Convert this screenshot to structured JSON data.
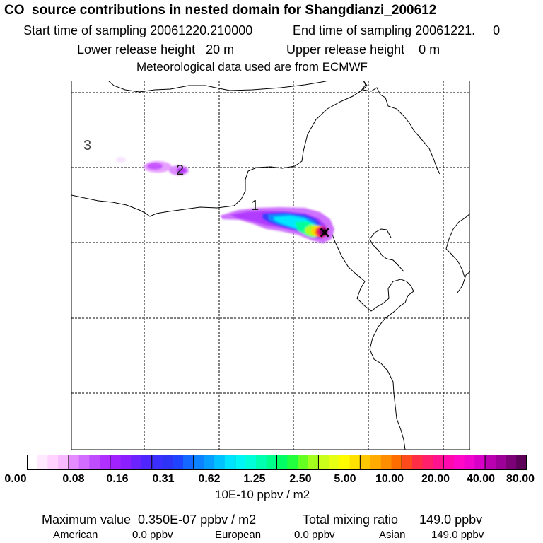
{
  "header": {
    "title": "CO  source contributions in nested domain for Shangdianzi_200612",
    "start_time": "Start time of sampling 20061220.210000",
    "end_time": "End time of sampling 20061221.     0",
    "lower_release": "Lower release height   20 m",
    "upper_release": "Upper release height    0 m",
    "met_data": "Meteorological data used are from ECMWF"
  },
  "map": {
    "trajectory_labels": [
      "3",
      "2",
      "1"
    ],
    "receptor_marker": "×"
  },
  "colorbar": {
    "ticks": [
      "0.00",
      "0.08",
      "0.16",
      "0.31",
      "0.62",
      "1.25",
      "2.50",
      "5.00",
      "10.00",
      "20.00",
      "40.00",
      "80.00"
    ],
    "units": "10E-10 ppbv / m2",
    "colors": [
      "#ffffff",
      "#ffe9ff",
      "#ffd2ff",
      "#f8baff",
      "#e48cff",
      "#d26bff",
      "#c04cff",
      "#b030ff",
      "#a222ff",
      "#8b1fff",
      "#6c24ff",
      "#4f26ff",
      "#3b2fff",
      "#2d34f5",
      "#1f43ff",
      "#1467ff",
      "#0d82ff",
      "#069fff",
      "#00c2ff",
      "#00e3ff",
      "#00f6f4",
      "#00ffd8",
      "#00ffae",
      "#00ff8a",
      "#00ff64",
      "#22ff3f",
      "#66ff22",
      "#a3ff1e",
      "#c9ff1a",
      "#e7ff12",
      "#fffb00",
      "#ffe100",
      "#ffc700",
      "#ffab00",
      "#ff8d00",
      "#ff6c00",
      "#ff4a1e",
      "#ff2d46",
      "#ff1f6a",
      "#ff128d",
      "#ff09ae",
      "#ff08c7",
      "#f005cf",
      "#d800c9",
      "#bb00b2",
      "#9d0098",
      "#7c0076",
      "#5c0058"
    ]
  },
  "summary": {
    "max_value": "Maximum value  0.350E-07 ppbv / m2",
    "total_mixing": "Total mixing ratio      149.0 ppbv",
    "regions": [
      {
        "name": "American",
        "value": "0.0 ppbv"
      },
      {
        "name": "European",
        "value": "0.0 ppbv"
      },
      {
        "name": "Asian",
        "value": "149.0 ppbv"
      }
    ]
  }
}
